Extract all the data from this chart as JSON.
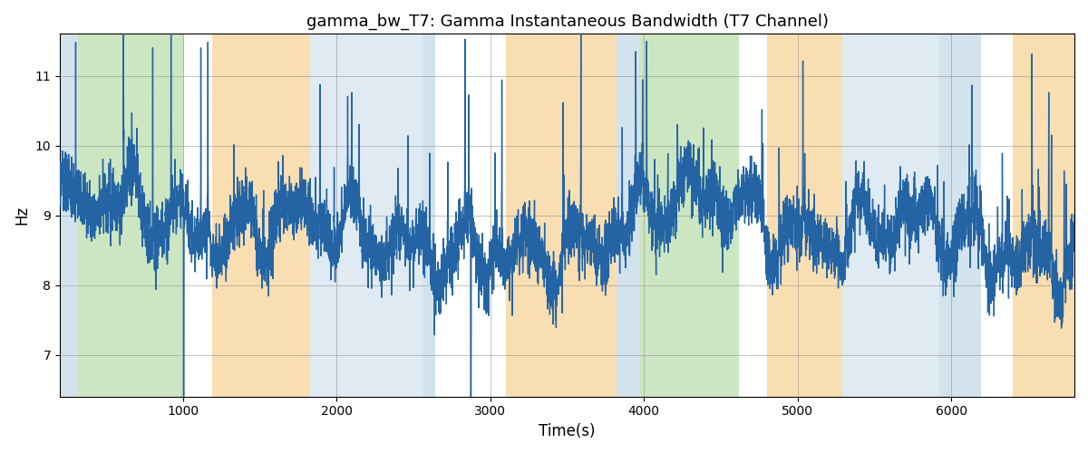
{
  "title": "gamma_bw_T7: Gamma Instantaneous Bandwidth (T7 Channel)",
  "xlabel": "Time(s)",
  "ylabel": "Hz",
  "xlim": [
    200,
    6800
  ],
  "ylim": [
    6.4,
    11.6
  ],
  "yticks": [
    7,
    8,
    9,
    10,
    11
  ],
  "xticks": [
    1000,
    2000,
    3000,
    4000,
    5000,
    6000
  ],
  "line_color": "#2464a4",
  "line_width": 1.0,
  "bg_regions": [
    {
      "xmin": 200,
      "xmax": 320,
      "color": "#b0cce0",
      "alpha": 0.55
    },
    {
      "xmin": 320,
      "xmax": 1010,
      "color": "#90c878",
      "alpha": 0.45
    },
    {
      "xmin": 1010,
      "xmax": 1190,
      "color": "#ffffff",
      "alpha": 0.0
    },
    {
      "xmin": 1190,
      "xmax": 1830,
      "color": "#f5c880",
      "alpha": 0.6
    },
    {
      "xmin": 1830,
      "xmax": 2560,
      "color": "#b0cce0",
      "alpha": 0.4
    },
    {
      "xmin": 2560,
      "xmax": 2640,
      "color": "#b0cce0",
      "alpha": 0.55
    },
    {
      "xmin": 2640,
      "xmax": 3100,
      "color": "#ffffff",
      "alpha": 0.0
    },
    {
      "xmin": 3100,
      "xmax": 3820,
      "color": "#f5c880",
      "alpha": 0.6
    },
    {
      "xmin": 3820,
      "xmax": 3970,
      "color": "#b0cce0",
      "alpha": 0.55
    },
    {
      "xmin": 3970,
      "xmax": 4620,
      "color": "#90c878",
      "alpha": 0.45
    },
    {
      "xmin": 4620,
      "xmax": 4800,
      "color": "#ffffff",
      "alpha": 0.0
    },
    {
      "xmin": 4800,
      "xmax": 5290,
      "color": "#f5c880",
      "alpha": 0.6
    },
    {
      "xmin": 5290,
      "xmax": 5920,
      "color": "#b0cce0",
      "alpha": 0.4
    },
    {
      "xmin": 5920,
      "xmax": 6190,
      "color": "#b0cce0",
      "alpha": 0.55
    },
    {
      "xmin": 6190,
      "xmax": 6400,
      "color": "#ffffff",
      "alpha": 0.0
    },
    {
      "xmin": 6400,
      "xmax": 6800,
      "color": "#f5c880",
      "alpha": 0.6
    }
  ],
  "seed": 37,
  "n_points": 6600,
  "x_start": 200,
  "x_end": 6800,
  "base_mean": 8.75,
  "slow_amp": 0.3,
  "med_amp": 0.28,
  "noise_std": 0.22
}
